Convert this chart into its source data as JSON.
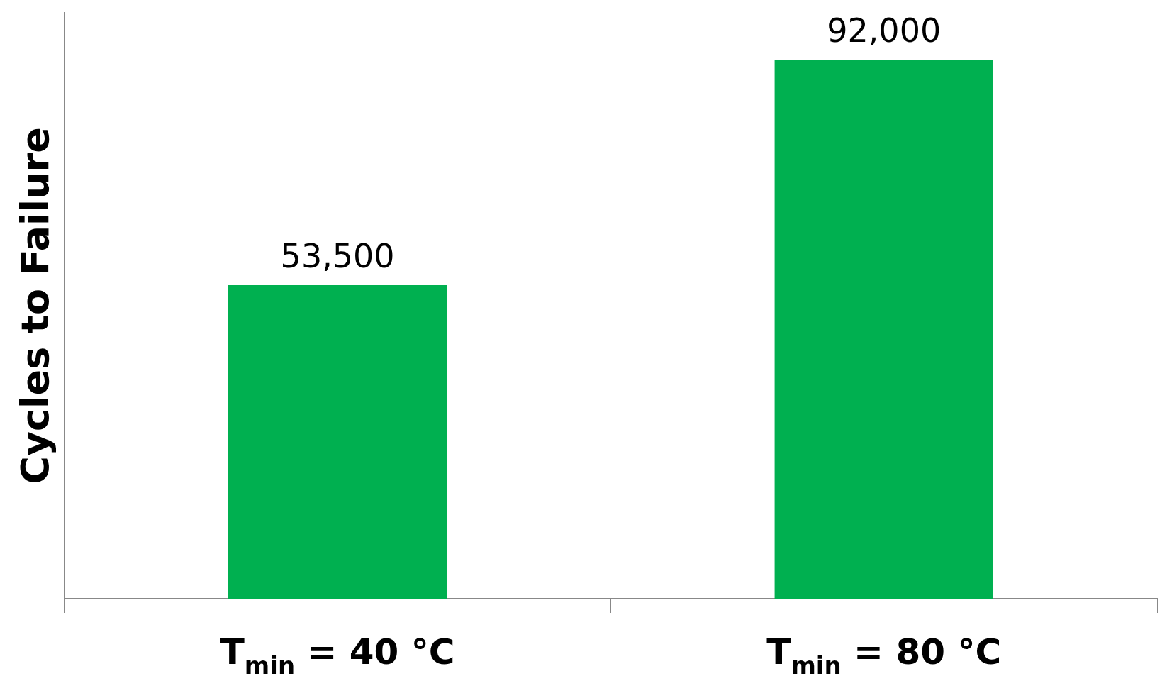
{
  "chart_data": {
    "type": "bar",
    "ylabel": "Cycles to Failure",
    "categories": [
      "T$_{min}$ = 40 °C",
      "T$_{min}$ = 80 °C"
    ],
    "values": [
      53500,
      92000
    ],
    "color": "#00b050",
    "value_labels": [
      "53,500",
      "92,000"
    ],
    "tick_labels": "x",
    "grid": false,
    "legend": false
  }
}
